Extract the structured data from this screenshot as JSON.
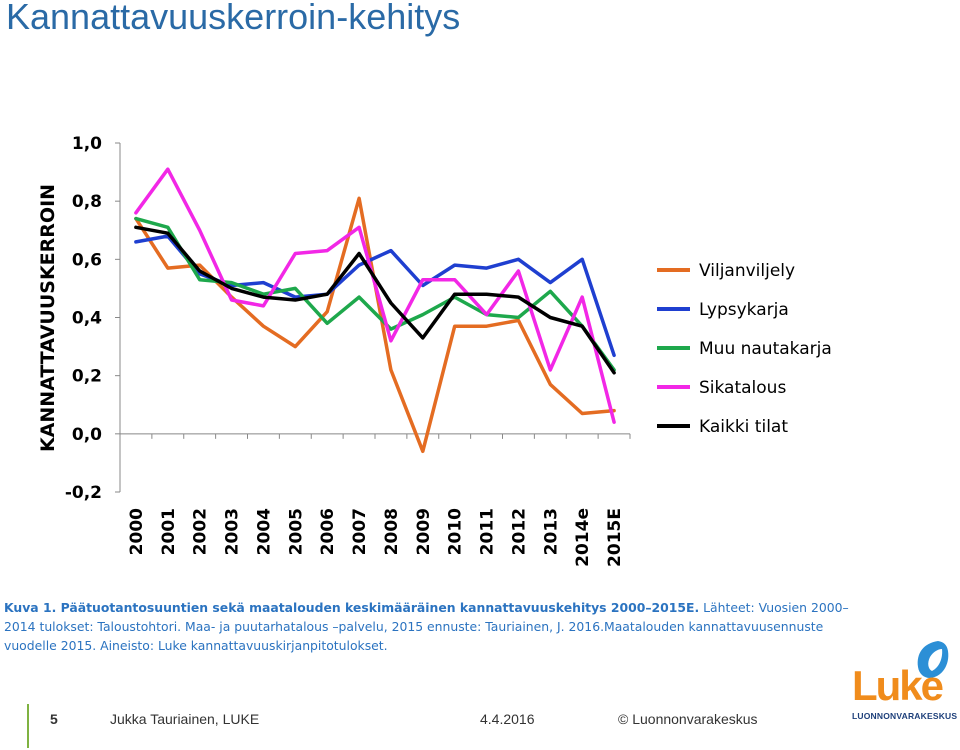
{
  "slide": {
    "title": "Kannattavuuskerroin-kehitys"
  },
  "chart_data": {
    "type": "line",
    "ylabel": "KANNATTAVUUSKERROIN",
    "ylim": [
      -0.2,
      1.0
    ],
    "yticks": [
      "-0,2",
      "0,0",
      "0,2",
      "0,4",
      "0,6",
      "0,8",
      "1,0"
    ],
    "ytick_values": [
      -0.2,
      0.0,
      0.2,
      0.4,
      0.6,
      0.8,
      1.0
    ],
    "categories": [
      "2000",
      "2001",
      "2002",
      "2003",
      "2004",
      "2005",
      "2006",
      "2007",
      "2008",
      "2009",
      "2010",
      "2011",
      "2012",
      "2013",
      "2014e",
      "2015E"
    ],
    "grid": false,
    "legend_position": "right",
    "series": [
      {
        "name": "Viljanviljely",
        "color": "#e46c22",
        "values": [
          0.74,
          0.57,
          0.58,
          0.47,
          0.37,
          0.3,
          0.42,
          0.81,
          0.22,
          -0.06,
          0.37,
          0.37,
          0.39,
          0.17,
          0.07,
          0.08
        ]
      },
      {
        "name": "Lypsykarja",
        "color": "#1f3fd0",
        "values": [
          0.66,
          0.68,
          0.55,
          0.51,
          0.52,
          0.47,
          0.48,
          0.58,
          0.63,
          0.51,
          0.58,
          0.57,
          0.6,
          0.52,
          0.6,
          0.27
        ]
      },
      {
        "name": "Muu nautakarja",
        "color": "#1ea84c",
        "values": [
          0.74,
          0.71,
          0.53,
          0.52,
          0.48,
          0.5,
          0.38,
          0.47,
          0.36,
          0.41,
          0.47,
          0.41,
          0.4,
          0.49,
          0.37,
          0.22
        ]
      },
      {
        "name": "Sikatalous",
        "color": "#f227e6",
        "values": [
          0.76,
          0.91,
          0.7,
          0.46,
          0.44,
          0.62,
          0.63,
          0.71,
          0.32,
          0.53,
          0.53,
          0.41,
          0.56,
          0.22,
          0.47,
          0.04
        ]
      },
      {
        "name": "Kaikki tilat",
        "color": "#000000",
        "values": [
          0.71,
          0.69,
          0.56,
          0.5,
          0.47,
          0.46,
          0.48,
          0.62,
          0.45,
          0.33,
          0.48,
          0.48,
          0.47,
          0.4,
          0.37,
          0.21
        ]
      }
    ]
  },
  "caption": {
    "bold": "Kuva 1. Päätuotantosuuntien sekä maatalouden keskimääräinen kannattavuuskehitys 2000–2015E.",
    "sources": " Lähteet: Vuosien 2000–2014 tulokset: Taloustohtori. Maa- ja puutarhatalous –palvelu, 2015 ennuste: Tauriainen, J. 2016.Maatalouden kannattavuusennuste vuodelle 2015. Aineisto: Luke kannattavuuskirjanpitotulokset."
  },
  "footer": {
    "page_number": "5",
    "author": "Jukka Tauriainen, LUKE",
    "date": "4.4.2016",
    "copyright": "© Luonnonvarakeskus"
  },
  "logo": {
    "word": "Luke",
    "subtitle": "LUONNONVARAKESKUS",
    "colors": {
      "orange": "#f08c1c",
      "navy": "#1d3f7a",
      "blue": "#2c8fd6"
    }
  }
}
